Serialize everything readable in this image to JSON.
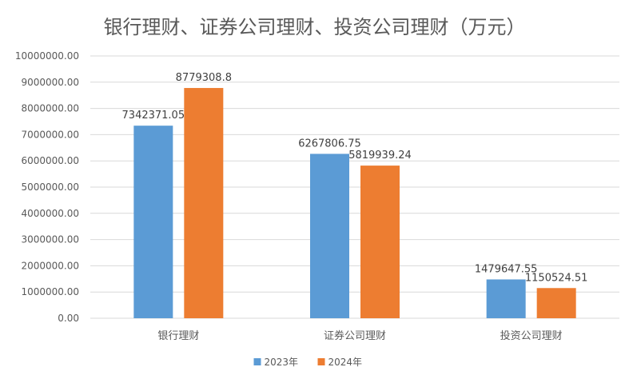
{
  "chart_data": {
    "type": "bar",
    "title": "银行理财、证券公司理财、投资公司理财（万元）",
    "categories": [
      "银行理财",
      "证券公司理财",
      "投资公司理财"
    ],
    "series": [
      {
        "name": "2023年",
        "values": [
          7342371.05,
          6267806.75,
          1479647.55
        ],
        "labels": [
          "7342371.05",
          "6267806.75",
          "1479647.55"
        ],
        "color": "#5B9BD5"
      },
      {
        "name": "2024年",
        "values": [
          8779308.8,
          5819939.24,
          1150524.51
        ],
        "labels": [
          "8779308.8",
          "5819939.24",
          "1150524.51"
        ],
        "color": "#ED7D31"
      }
    ],
    "ylim": [
      0,
      10000000
    ],
    "ytick_values": [
      0,
      1000000,
      2000000,
      3000000,
      4000000,
      5000000,
      6000000,
      7000000,
      8000000,
      9000000,
      10000000
    ],
    "ytick_labels": [
      "0.00",
      "1000000.00",
      "2000000.00",
      "3000000.00",
      "4000000.00",
      "5000000.00",
      "6000000.00",
      "7000000.00",
      "8000000.00",
      "9000000.00",
      "10000000.00"
    ],
    "grid": true,
    "legend_position": "bottom",
    "axis_color": "#D9D9D9",
    "text_color": "#595959",
    "label_color": "#404040"
  }
}
